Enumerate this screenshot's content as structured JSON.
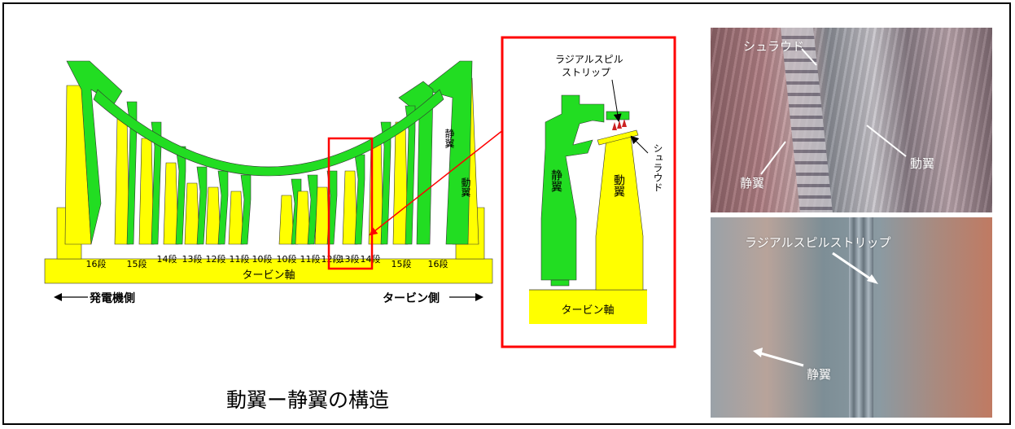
{
  "title": "動翼ー静翼の構造",
  "section": {
    "shaft_label": "タービン軸",
    "generator_side": "発電機側",
    "turbine_side": "タービン側",
    "stage_labels": [
      "16段",
      "15段",
      "14段",
      "13段",
      "12段",
      "11段",
      "10段",
      "10段",
      "11段",
      "12段",
      "13段",
      "14段",
      "15段",
      "16段"
    ],
    "stator_label": "静翼",
    "rotor_label": "動翼"
  },
  "detail": {
    "radial_strip_label_line1": "ラジアルスピル",
    "radial_strip_label_line2": "ストリップ",
    "shroud_label": "シュラウド",
    "stator_label": "静翼",
    "rotor_label": "動翼",
    "shaft_label": "タービン軸"
  },
  "photo_top": {
    "shroud_label": "シュラウド",
    "stator_label": "静翼",
    "rotor_label": "動翼"
  },
  "photo_bottom": {
    "radial_strip_label": "ラジアルスピルストリップ",
    "stator_label": "静翼"
  },
  "colors": {
    "stator": "#22dd22",
    "rotor": "#ffff00",
    "highlight": "#ff0000",
    "frame": "#000000"
  }
}
